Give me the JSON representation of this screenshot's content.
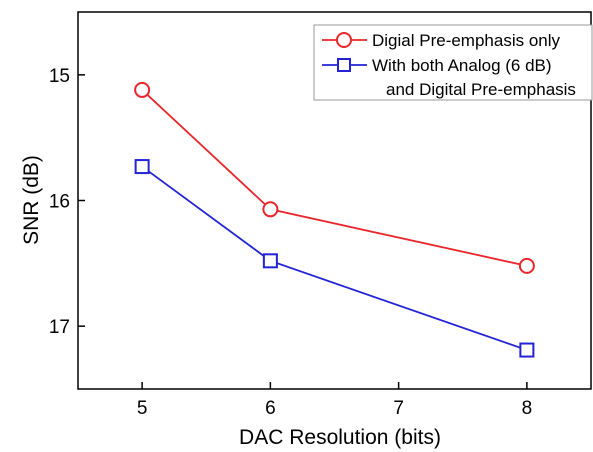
{
  "chart_data": {
    "type": "line",
    "xlabel": "DAC Resolution (bits)",
    "ylabel": "SNR (dB)",
    "xlim": [
      4.5,
      8.5
    ],
    "ylim": [
      14.5,
      17.5
    ],
    "y_inverted": true,
    "x_ticks": [
      "5",
      "6",
      "7",
      "8"
    ],
    "y_ticks": [
      "15",
      "16",
      "17"
    ],
    "legend_position": "top-right",
    "series": [
      {
        "name": "Digial Pre-emphasis only",
        "marker": "circle",
        "color": "#e8262b",
        "x": [
          5,
          6,
          8
        ],
        "y": [
          15.12,
          16.07,
          16.52
        ]
      },
      {
        "name": "With both Analog (6 dB)",
        "name_line2": "and Digital Pre-emphasis",
        "marker": "square",
        "color": "#2323d6",
        "x": [
          5,
          6,
          8
        ],
        "y": [
          15.73,
          16.48,
          17.19
        ]
      }
    ]
  }
}
